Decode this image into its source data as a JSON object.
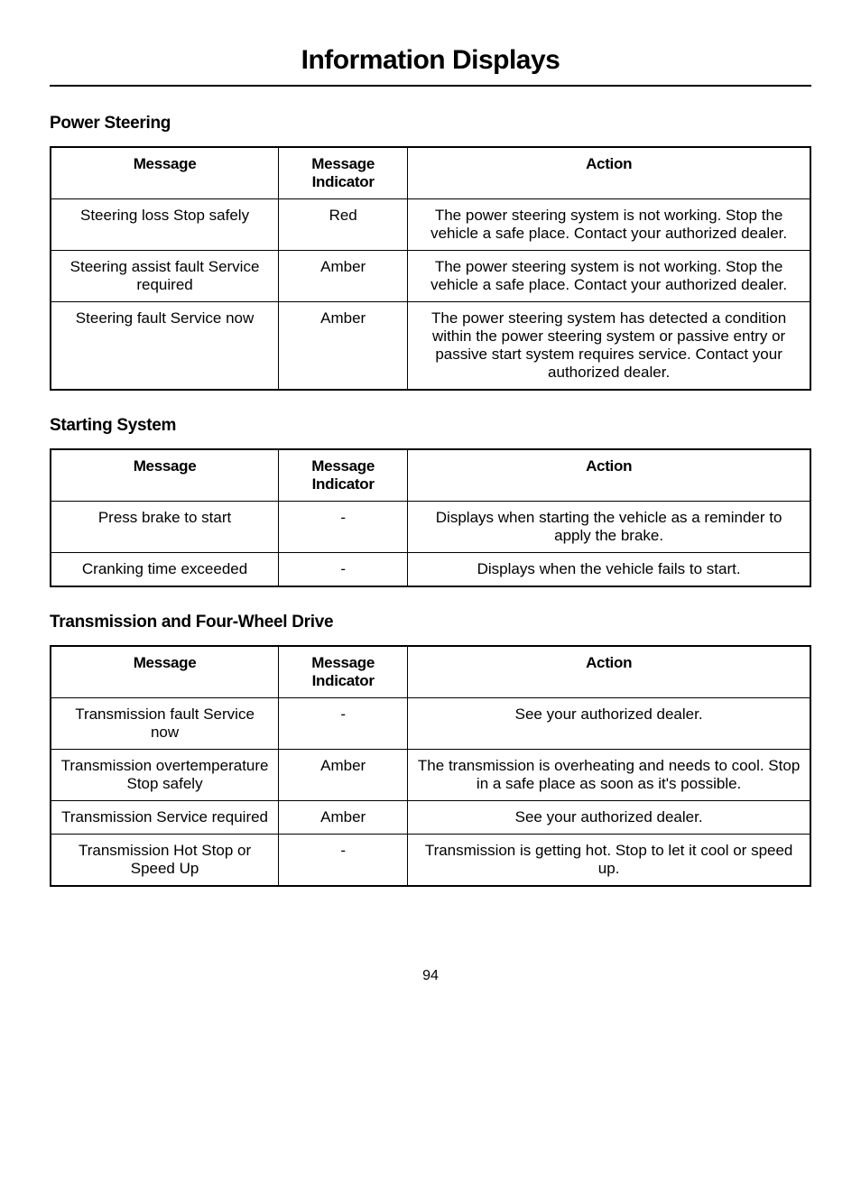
{
  "page": {
    "title": "Information Displays",
    "number": "94"
  },
  "headers": {
    "message": "Message",
    "indicator": "Message Indicator",
    "action": "Action"
  },
  "sections": [
    {
      "title": "Power Steering",
      "rows": [
        {
          "message": "Steering loss Stop safely",
          "indicator": "Red",
          "action": "The power steering system is not working. Stop the vehicle a safe place. Contact your authorized dealer."
        },
        {
          "message": "Steering assist fault Service required",
          "indicator": "Amber",
          "action": "The power steering system is not working. Stop the vehicle a safe place. Contact your authorized dealer."
        },
        {
          "message": "Steering fault Service now",
          "indicator": "Amber",
          "action": "The power steering system has detected a condition within the power steering system or passive entry or passive start system requires service. Contact your authorized dealer."
        }
      ]
    },
    {
      "title": "Starting System",
      "rows": [
        {
          "message": "Press brake to start",
          "indicator": "-",
          "action": "Displays when starting the vehicle as a reminder to apply the brake."
        },
        {
          "message": "Cranking time exceeded",
          "indicator": "-",
          "action": "Displays when the vehicle fails to start."
        }
      ]
    },
    {
      "title": "Transmission and Four-Wheel Drive",
      "rows": [
        {
          "message": "Transmission fault Service now",
          "indicator": "-",
          "action": "See your authorized dealer."
        },
        {
          "message": "Transmission overtemperature Stop safely",
          "indicator": "Amber",
          "action": "The transmission is overheating and needs to cool. Stop in a safe place as soon as it's possible."
        },
        {
          "message": "Transmission Service required",
          "indicator": "Amber",
          "action": "See your authorized dealer."
        },
        {
          "message": "Transmission Hot Stop or Speed Up",
          "indicator": "-",
          "action": "Transmission is getting hot. Stop to let it cool or speed up."
        }
      ]
    }
  ]
}
